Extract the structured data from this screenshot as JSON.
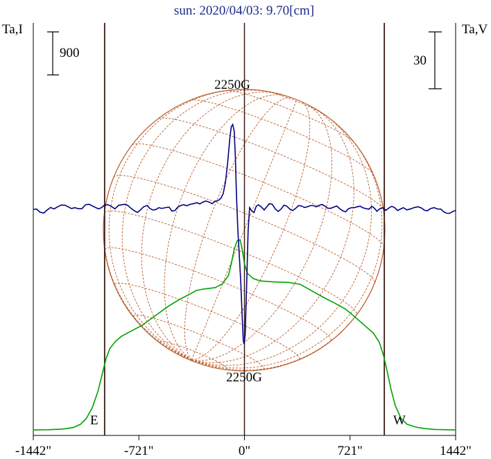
{
  "chart_data": {
    "type": "line",
    "title": "sun: 2020/04/03: 9.70[cm]",
    "left_axis_label": "Ta,I",
    "right_axis_label": "Ta,V",
    "xlim": [
      -1442,
      1442
    ],
    "x_ticks": [
      {
        "value": -1442,
        "label": "-1442\""
      },
      {
        "value": -721,
        "label": "-721\""
      },
      {
        "value": 0,
        "label": "0\""
      },
      {
        "value": 721,
        "label": "721\""
      },
      {
        "value": 1442,
        "label": "1442\""
      }
    ],
    "scale_bar_I": {
      "label": "900",
      "value": 900
    },
    "scale_bar_V": {
      "label": "30",
      "value": 30
    },
    "limb_markers": [
      {
        "label": "E",
        "value": -955
      },
      {
        "label": "W",
        "value": 955
      }
    ],
    "center_line": 0,
    "annotations": [
      {
        "text": "2250G",
        "x": -80,
        "position": "above peak"
      },
      {
        "text": "2250G",
        "x": -5,
        "position": "below trough"
      }
    ],
    "series": [
      {
        "id": "intensity",
        "color": "#00a000",
        "y_unit": "Ta,I",
        "points": [
          [
            -1442,
            -60
          ],
          [
            -1340,
            -55
          ],
          [
            -1240,
            -40
          ],
          [
            -1170,
            -10
          ],
          [
            -1120,
            60
          ],
          [
            -1080,
            180
          ],
          [
            -1040,
            400
          ],
          [
            -1000,
            750
          ],
          [
            -970,
            1130
          ],
          [
            -945,
            1430
          ],
          [
            -920,
            1640
          ],
          [
            -880,
            1800
          ],
          [
            -840,
            1900
          ],
          [
            -780,
            2000
          ],
          [
            -700,
            2130
          ],
          [
            -610,
            2330
          ],
          [
            -520,
            2530
          ],
          [
            -440,
            2680
          ],
          [
            -370,
            2790
          ],
          [
            -330,
            2860
          ],
          [
            -280,
            2890
          ],
          [
            -200,
            2920
          ],
          [
            -150,
            3000
          ],
          [
            -110,
            3170
          ],
          [
            -90,
            3420
          ],
          [
            -70,
            3720
          ],
          [
            -50,
            3900
          ],
          [
            -30,
            3920
          ],
          [
            -15,
            3720
          ],
          [
            0,
            3420
          ],
          [
            20,
            3220
          ],
          [
            60,
            3110
          ],
          [
            110,
            3060
          ],
          [
            200,
            3040
          ],
          [
            300,
            3030
          ],
          [
            380,
            2990
          ],
          [
            450,
            2870
          ],
          [
            550,
            2700
          ],
          [
            620,
            2590
          ],
          [
            690,
            2470
          ],
          [
            760,
            2290
          ],
          [
            820,
            2130
          ],
          [
            880,
            1970
          ],
          [
            920,
            1780
          ],
          [
            950,
            1500
          ],
          [
            975,
            1160
          ],
          [
            1000,
            800
          ],
          [
            1030,
            450
          ],
          [
            1070,
            180
          ],
          [
            1110,
            60
          ],
          [
            1170,
            0
          ],
          [
            1230,
            -30
          ],
          [
            1300,
            -50
          ],
          [
            1380,
            -55
          ],
          [
            1442,
            -60
          ]
        ]
      },
      {
        "id": "polarization",
        "color": "#000080",
        "y_unit": "Ta,V",
        "points": [
          [
            -1442,
            0
          ],
          [
            -1420,
            0.2
          ],
          [
            -1395,
            -1.5
          ],
          [
            -1370,
            -1.9
          ],
          [
            -1350,
            -0.5
          ],
          [
            -1325,
            1.0
          ],
          [
            -1300,
            0.3
          ],
          [
            -1275,
            1.4
          ],
          [
            -1250,
            2.3
          ],
          [
            -1225,
            2.2
          ],
          [
            -1200,
            1.2
          ],
          [
            -1180,
            0.4
          ],
          [
            -1160,
            0.9
          ],
          [
            -1135,
            0.4
          ],
          [
            -1110,
            0.4
          ],
          [
            -1085,
            2.5
          ],
          [
            -1060,
            2.7
          ],
          [
            -1035,
            1.7
          ],
          [
            -1012,
            0.8
          ],
          [
            -995,
            0.3
          ],
          [
            -975,
            1.0
          ],
          [
            -955,
            2.3
          ],
          [
            -935,
            2.5
          ],
          [
            -910,
            1.7
          ],
          [
            -885,
            0.3
          ],
          [
            -860,
            2.1
          ],
          [
            -835,
            2.5
          ],
          [
            -815,
            2.7
          ],
          [
            -795,
            2.0
          ],
          [
            -775,
            0.6
          ],
          [
            -752,
            -0.7
          ],
          [
            -730,
            -1.6
          ],
          [
            -710,
            -0.3
          ],
          [
            -690,
            1.3
          ],
          [
            -665,
            2.1
          ],
          [
            -645,
            0.4
          ],
          [
            -625,
            -0.3
          ],
          [
            -605,
            -0.1
          ],
          [
            -585,
            0.9
          ],
          [
            -565,
            0.5
          ],
          [
            -540,
            0.9
          ],
          [
            -515,
            1.2
          ],
          [
            -495,
            -0.9
          ],
          [
            -475,
            -0.6
          ],
          [
            -455,
            1.2
          ],
          [
            -435,
            2.0
          ],
          [
            -415,
            2.5
          ],
          [
            -395,
            1.9
          ],
          [
            -370,
            2.7
          ],
          [
            -350,
            3.0
          ],
          [
            -325,
            3.5
          ],
          [
            -305,
            2.9
          ],
          [
            -285,
            3.8
          ],
          [
            -265,
            4.4
          ],
          [
            -245,
            4.0
          ],
          [
            -220,
            3.0
          ],
          [
            -200,
            4.4
          ],
          [
            -180,
            4.6
          ],
          [
            -160,
            6.0
          ],
          [
            -145,
            8.4
          ],
          [
            -130,
            14.1
          ],
          [
            -115,
            24.3
          ],
          [
            -100,
            37.5
          ],
          [
            -90,
            43.6
          ],
          [
            -80,
            44.8
          ],
          [
            -70,
            41.4
          ],
          [
            -62,
            27.5
          ],
          [
            -55,
            8.4
          ],
          [
            -45,
            -11.1
          ],
          [
            -35,
            -24.3
          ],
          [
            -25,
            -38.7
          ],
          [
            -15,
            -57.3
          ],
          [
            -8,
            -69.2
          ],
          [
            -2,
            -71.0
          ],
          [
            5,
            -65.7
          ],
          [
            15,
            -39.3
          ],
          [
            25,
            -11.0
          ],
          [
            35,
            0.9
          ],
          [
            50,
            -0.8
          ],
          [
            65,
            -1.7
          ],
          [
            80,
            1.6
          ],
          [
            95,
            2.4
          ],
          [
            115,
            1.3
          ],
          [
            135,
            -0.3
          ],
          [
            150,
            1.2
          ],
          [
            170,
            3.0
          ],
          [
            190,
            2.7
          ],
          [
            210,
            0.3
          ],
          [
            230,
            -1.1
          ],
          [
            250,
            0.2
          ],
          [
            270,
            2.2
          ],
          [
            290,
            1.7
          ],
          [
            310,
            0.1
          ],
          [
            330,
            -0.6
          ],
          [
            350,
            0.6
          ],
          [
            370,
            2.0
          ],
          [
            390,
            1.8
          ],
          [
            410,
            1.0
          ],
          [
            430,
            1.4
          ],
          [
            450,
            2.0
          ],
          [
            470,
            2.0
          ],
          [
            490,
            1.4
          ],
          [
            510,
            2.1
          ],
          [
            530,
            2.6
          ],
          [
            550,
            1.7
          ],
          [
            570,
            0.6
          ],
          [
            590,
            0.6
          ],
          [
            610,
            1.2
          ],
          [
            630,
            1.8
          ],
          [
            650,
            0.4
          ],
          [
            670,
            -0.7
          ],
          [
            690,
            -1.3
          ],
          [
            710,
            0.3
          ],
          [
            730,
            0.9
          ],
          [
            750,
            0.9
          ],
          [
            770,
            1.4
          ],
          [
            790,
            1.7
          ],
          [
            810,
            0.8
          ],
          [
            830,
            0.4
          ],
          [
            850,
            0.1
          ],
          [
            870,
            1.6
          ],
          [
            885,
            0.8
          ],
          [
            905,
            -1.0
          ],
          [
            925,
            0.4
          ],
          [
            945,
            0.9
          ],
          [
            965,
            -0.5
          ],
          [
            985,
            0.7
          ],
          [
            1005,
            1.6
          ],
          [
            1025,
            1.0
          ],
          [
            1045,
            -0.6
          ],
          [
            1065,
            0.2
          ],
          [
            1085,
            0.9
          ],
          [
            1110,
            -0.3
          ],
          [
            1135,
            0.3
          ],
          [
            1160,
            1.0
          ],
          [
            1185,
            1.4
          ],
          [
            1210,
            0.7
          ],
          [
            1230,
            -0.5
          ],
          [
            1250,
            -0.7
          ],
          [
            1270,
            0.4
          ],
          [
            1295,
            0.9
          ],
          [
            1320,
            0.2
          ],
          [
            1340,
            0.2
          ],
          [
            1360,
            -1.2
          ],
          [
            1380,
            -2.0
          ],
          [
            1400,
            -2.1
          ],
          [
            1420,
            -1.2
          ],
          [
            1442,
            -0.5
          ]
        ]
      }
    ]
  }
}
